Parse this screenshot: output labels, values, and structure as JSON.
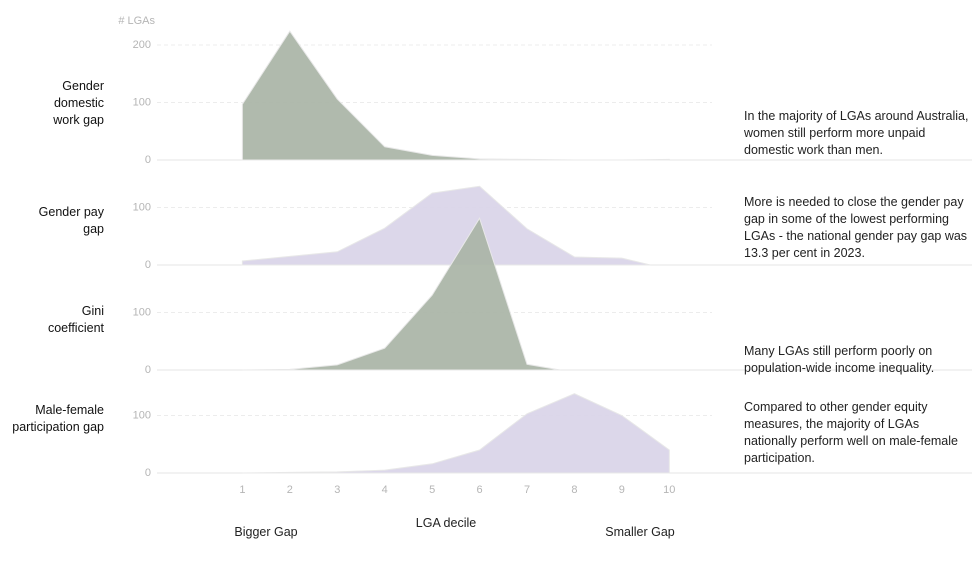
{
  "chart_data": [
    {
      "type": "area",
      "title": "Gender domestic work gap",
      "ylabel": "# LGAs",
      "annotation": "In the majority of LGAs around Australia, women still perform more unpaid domestic work than men.",
      "x": [
        1,
        2,
        3,
        4,
        5,
        6,
        7,
        8,
        9,
        10
      ],
      "values": [
        97,
        224,
        106,
        23,
        8,
        2,
        1,
        0,
        0,
        1
      ],
      "color": "#a9b4a6",
      "xlim": [
        -0.8,
        10.9
      ],
      "ylim": [
        0,
        200
      ],
      "yticks": [
        0,
        100,
        200
      ]
    },
    {
      "type": "area",
      "title": "Gender pay gap",
      "annotation": "More is needed to close the gender pay gap in some of the lowest performing LGAs - the national gender pay gap was 13.3 per cent in 2023.",
      "x": [
        1,
        2,
        3,
        4,
        5,
        6,
        7,
        8,
        9,
        9.6
      ],
      "values": [
        7,
        15,
        23,
        64,
        125,
        137,
        63,
        14,
        12,
        0
      ],
      "color": "#d9d4e8",
      "xlim": [
        -0.8,
        10.9
      ],
      "ylim": [
        0,
        200
      ],
      "yticks": [
        0,
        100
      ]
    },
    {
      "type": "area",
      "title": "Gini coefficient",
      "annotation": "Many LGAs still perform poorly on population-wide income inequality.",
      "x": [
        1,
        2,
        3,
        4,
        5,
        6,
        7,
        7.7
      ],
      "values": [
        0,
        1,
        9,
        38,
        130,
        264,
        10,
        0
      ],
      "color": "#a9b4a6",
      "xlim": [
        -0.8,
        10.9
      ],
      "ylim": [
        0,
        200
      ],
      "yticks": [
        0,
        100
      ]
    },
    {
      "type": "area",
      "title": "Male-female participation gap",
      "annotation": "Compared to other gender equity measures, the majority of LGAs nationally perform well on male-female participation.",
      "x": [
        1,
        2,
        3,
        4,
        5,
        6,
        7,
        8,
        9,
        10
      ],
      "values": [
        0,
        1,
        2,
        5,
        16,
        40,
        103,
        138,
        100,
        40
      ],
      "color": "#d9d4e8",
      "xlim": [
        -0.8,
        10.9
      ],
      "ylim": [
        0,
        200
      ],
      "yticks": [
        0,
        100
      ],
      "xlabel": "LGA decile",
      "xticks": [
        1,
        2,
        3,
        4,
        5,
        6,
        7,
        8,
        9,
        10
      ],
      "left_label": "Bigger Gap",
      "right_label": "Smaller Gap"
    }
  ]
}
